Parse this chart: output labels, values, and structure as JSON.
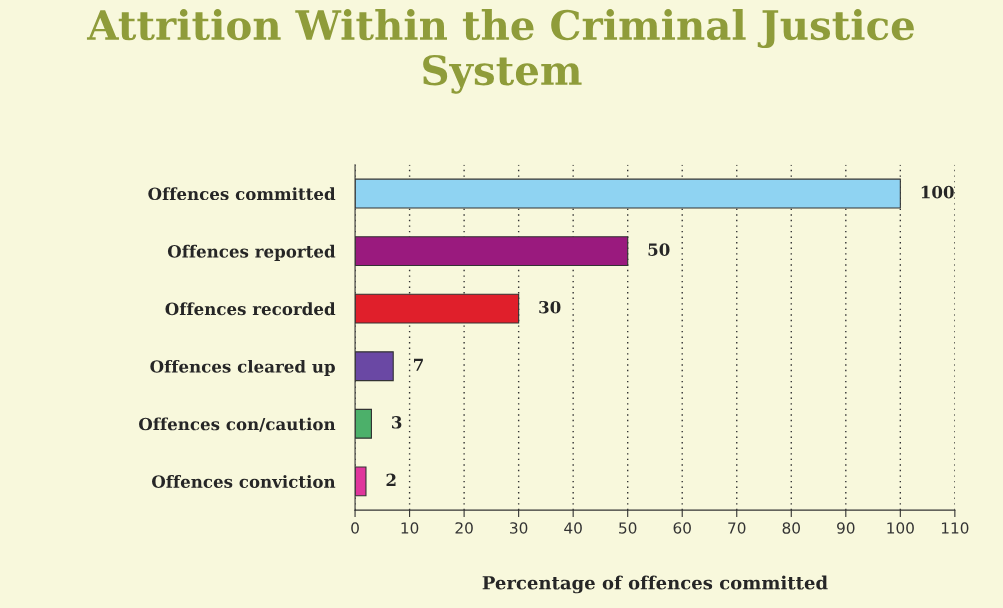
{
  "chart_data": {
    "type": "bar",
    "orientation": "horizontal",
    "title": "Attrition Within the Criminal Justice System",
    "xlabel": "Percentage of offences committed",
    "categories": [
      "Offences committed",
      "Offences reported",
      "Offences recorded",
      "Offences cleared up",
      "Offences con/caution",
      "Offences conviction"
    ],
    "values": [
      100,
      50,
      30,
      7,
      3,
      2
    ],
    "colors": [
      "#8fd3f2",
      "#9a1a7e",
      "#e01f2b",
      "#6a48a4",
      "#4cb06a",
      "#e0369c"
    ],
    "xlim": [
      0,
      110
    ],
    "xticks": [
      0,
      10,
      20,
      30,
      40,
      50,
      60,
      70,
      80,
      90,
      100,
      110
    ],
    "grid": "x",
    "data_labels": true
  }
}
